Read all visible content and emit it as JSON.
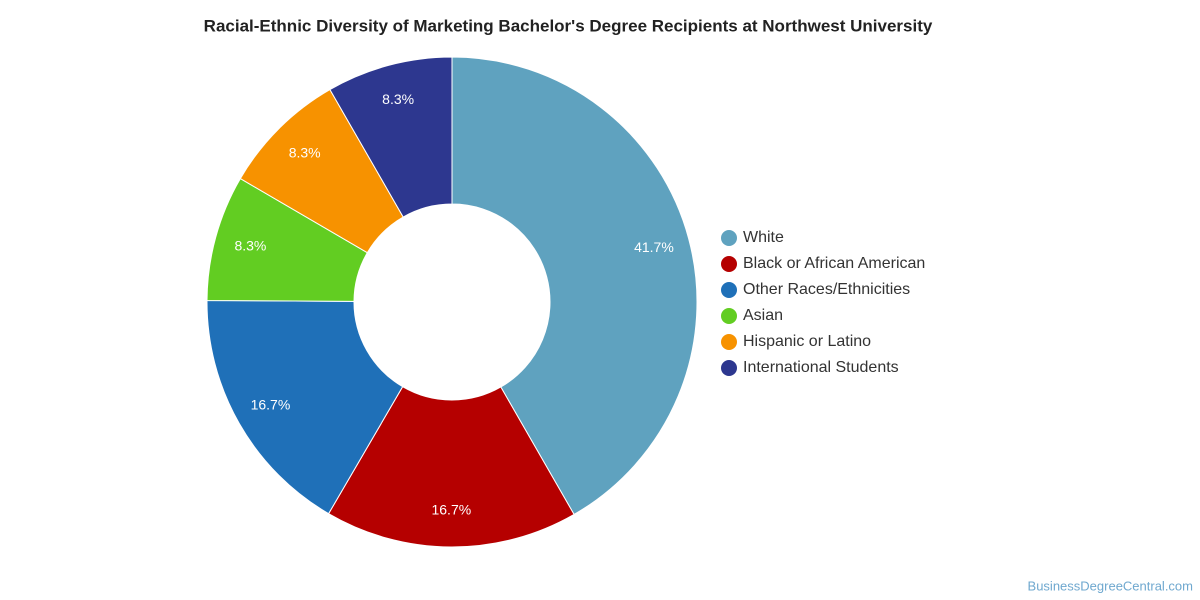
{
  "chart_data": {
    "type": "donut",
    "title": "Racial-Ethnic Diversity of Marketing Bachelor's Degree Recipients at Northwest University",
    "categories": [
      "White",
      "Black or African American",
      "Other Races/Ethnicities",
      "Asian",
      "Hispanic or Latino",
      "International Students"
    ],
    "values": [
      41.7,
      16.7,
      16.7,
      8.3,
      8.3,
      8.3
    ],
    "value_labels": [
      "41.7%",
      "16.7%",
      "16.7%",
      "8.3%",
      "8.3%",
      "8.3%"
    ],
    "colors": [
      "#5fa2bf",
      "#b50000",
      "#1f70b8",
      "#62cd22",
      "#f79200",
      "#2d378f"
    ],
    "source": "BusinessDegreeCentral.com"
  }
}
